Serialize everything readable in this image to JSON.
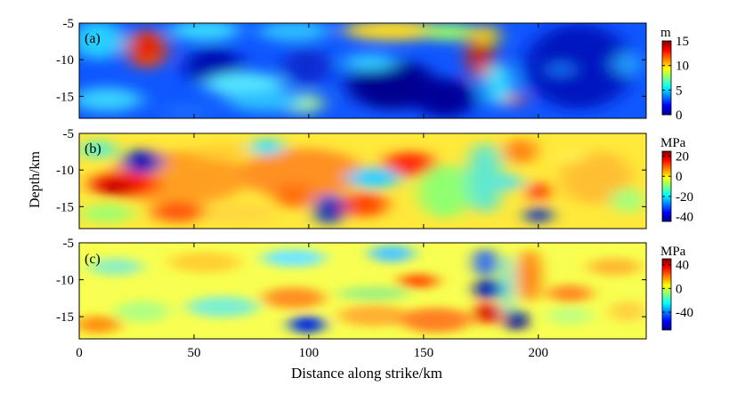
{
  "figure": {
    "ylabel": "Depth/km",
    "xlabel": "Distance along strike/km"
  },
  "chart_data": [
    {
      "type": "heatmap",
      "panel_label": "(a)",
      "colorbar_unit": "m",
      "colormap": "jet",
      "color_range": [
        0,
        15
      ],
      "colorbar_ticks": [
        15,
        10,
        5,
        0
      ],
      "xlim": [
        0,
        247
      ],
      "ylim": [
        -18,
        -5
      ],
      "y_ticks": [
        -5,
        -10,
        -15
      ],
      "x_ticks": [],
      "features": [
        {
          "x": 30,
          "y": -9,
          "value": 13
        },
        {
          "x": 178,
          "y": -10,
          "value": 14
        },
        {
          "x": 190,
          "y": -16,
          "value": 12
        },
        {
          "x": 60,
          "y": -11,
          "value": 1
        },
        {
          "x": 140,
          "y": -13,
          "value": 0.5
        },
        {
          "x": 230,
          "y": -10,
          "value": 1
        },
        {
          "x": 100,
          "y": -16,
          "value": 8
        }
      ]
    },
    {
      "type": "heatmap",
      "panel_label": "(b)",
      "colorbar_unit": "MPa",
      "colormap": "jet",
      "color_range": [
        -45,
        25
      ],
      "colorbar_ticks": [
        20,
        0,
        -20,
        -40
      ],
      "xlim": [
        0,
        247
      ],
      "ylim": [
        -18,
        -5
      ],
      "y_ticks": [
        -5,
        -10,
        -15
      ],
      "x_ticks": [],
      "features": [
        {
          "x": 28,
          "y": -9.5,
          "value": -40
        },
        {
          "x": 20,
          "y": -12,
          "value": 20
        },
        {
          "x": 108,
          "y": -16,
          "value": -40
        },
        {
          "x": 200,
          "y": -16.5,
          "value": -35
        },
        {
          "x": 200,
          "y": -14,
          "value": 20
        },
        {
          "x": 135,
          "y": -10,
          "value": 15
        },
        {
          "x": 140,
          "y": -12.5,
          "value": -15
        }
      ]
    },
    {
      "type": "heatmap",
      "panel_label": "(c)",
      "colorbar_unit": "MPa",
      "colormap": "jet",
      "color_range": [
        -70,
        50
      ],
      "colorbar_ticks": [
        40,
        0,
        -40
      ],
      "xlim": [
        0,
        247
      ],
      "ylim": [
        -18,
        -5
      ],
      "y_ticks": [
        -5,
        -10,
        -15
      ],
      "x_ticks": [
        0,
        50,
        100,
        150,
        200
      ],
      "features": [
        {
          "x": 178,
          "y": -11.5,
          "value": -65
        },
        {
          "x": 178,
          "y": -14.5,
          "value": 45
        },
        {
          "x": 188,
          "y": -16,
          "value": -65
        },
        {
          "x": 100,
          "y": -16,
          "value": -45
        },
        {
          "x": 135,
          "y": -11,
          "value": 25
        },
        {
          "x": 180,
          "y": -8,
          "value": -50
        }
      ]
    }
  ]
}
